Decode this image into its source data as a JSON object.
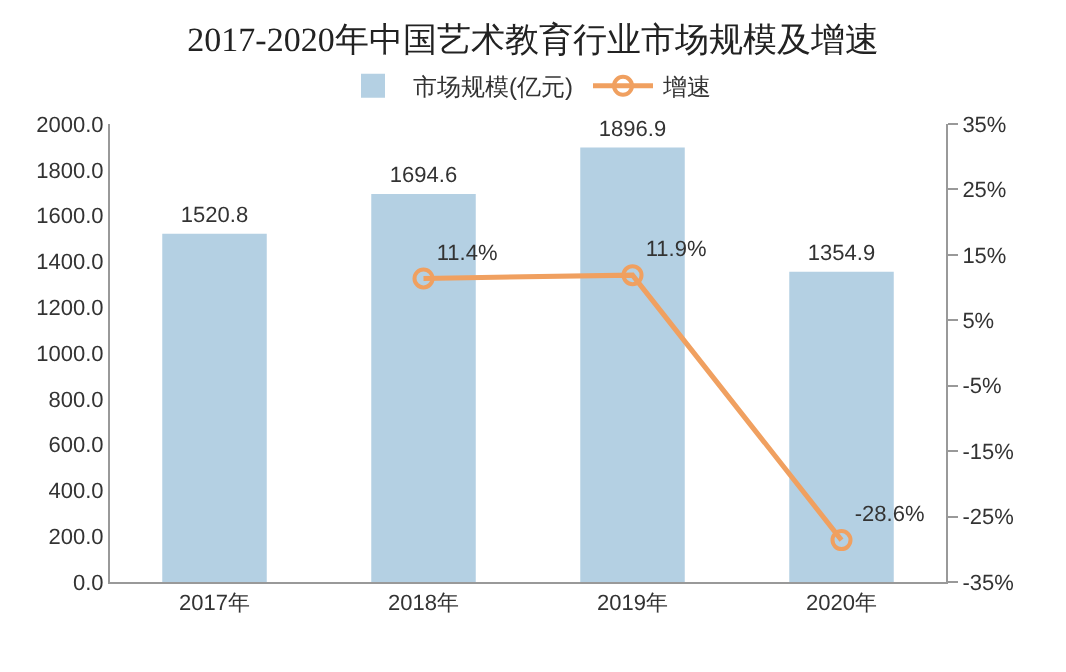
{
  "chart_data": {
    "type": "bar",
    "title": "2017-2020年中国艺术教育行业市场规模及增速",
    "categories": [
      "2017年",
      "2018年",
      "2019年",
      "2020年"
    ],
    "series": [
      {
        "name": "市场规模(亿元)",
        "color": "#b4d0e3",
        "values": [
          1520.8,
          1694.6,
          1896.9,
          1354.9
        ],
        "value_labels": [
          "1520.8",
          "1694.6",
          "1896.9",
          "1354.9"
        ]
      },
      {
        "name": "增速",
        "type": "line",
        "axis": "y2",
        "color": "#f0a060",
        "marker": "circle",
        "values": [
          null,
          11.4,
          11.9,
          -28.6
        ],
        "value_labels": [
          null,
          "11.4%",
          "11.9%",
          "-28.6%"
        ]
      }
    ],
    "ylim": [
      0,
      2000
    ],
    "yticks": [
      {
        "value": 0,
        "label": "0.0"
      },
      {
        "value": 200,
        "label": "200.0"
      },
      {
        "value": 400,
        "label": "400.0"
      },
      {
        "value": 600,
        "label": "600.0"
      },
      {
        "value": 800,
        "label": "800.0"
      },
      {
        "value": 1000,
        "label": "1000.0"
      },
      {
        "value": 1200,
        "label": "1200.0"
      },
      {
        "value": 1400,
        "label": "1400.0"
      },
      {
        "value": 1600,
        "label": "1600.0"
      },
      {
        "value": 1800,
        "label": "1800.0"
      },
      {
        "value": 2000,
        "label": "2000.0"
      }
    ],
    "y2lim": [
      -35,
      35
    ],
    "y2ticks": [
      {
        "value": -35,
        "label": "-35%"
      },
      {
        "value": -25,
        "label": "-25%"
      },
      {
        "value": -15,
        "label": "-15%"
      },
      {
        "value": -5,
        "label": "-5%"
      },
      {
        "value": 5,
        "label": "5%"
      },
      {
        "value": 15,
        "label": "15%"
      },
      {
        "value": 25,
        "label": "25%"
      },
      {
        "value": 35,
        "label": "35%"
      }
    ],
    "legend": "top"
  }
}
